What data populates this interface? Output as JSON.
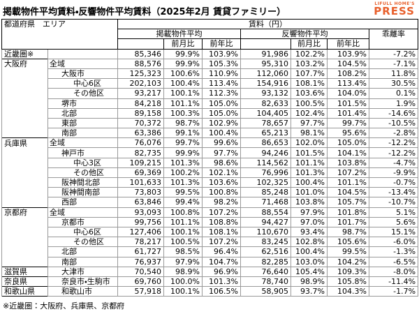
{
  "header": {
    "title": "掲載物件平均賃料・反響物件平均賃料（2025年2月 賃貸ファミリー）",
    "logo_top": "LIFULL HOME'S",
    "logo_main": "PRESS"
  },
  "table": {
    "head": {
      "region": "都道府県　エリア",
      "rent": "賃料（円）",
      "listed": "掲載物件平均",
      "inquiry": "反響物件平均",
      "gap": "乖離率",
      "mom": "前月比",
      "yoy": "前年比"
    },
    "groups": [
      {
        "pref": "近畿圏※",
        "rows": [
          {
            "values": [
              "85,346",
              "99.9%",
              "103.9%",
              "91,986",
              "102.2%",
              "103.9%",
              "-7.2%"
            ]
          }
        ]
      },
      {
        "pref": "大阪府",
        "rows": [
          {
            "area": "全域",
            "values": [
              "88,576",
              "99.9%",
              "105.3%",
              "95,310",
              "103.2%",
              "104.5%",
              "-7.1%"
            ],
            "areas": [
              {
                "area": "大阪市",
                "values": [
                  "125,323",
                  "100.6%",
                  "110.9%",
                  "112,060",
                  "107.7%",
                  "108.2%",
                  "11.8%"
                ],
                "areas": [
                  {
                    "area": "中心6区",
                    "values": [
                      "202,103",
                      "100.4%",
                      "113.4%",
                      "154,916",
                      "108.1%",
                      "113.4%",
                      "30.5%"
                    ]
                  },
                  {
                    "area": "その他区",
                    "values": [
                      "93,217",
                      "100.1%",
                      "112.3%",
                      "93,132",
                      "103.6%",
                      "104.0%",
                      "0.1%"
                    ]
                  }
                ]
              },
              {
                "area": "堺市",
                "values": [
                  "84,218",
                  "101.1%",
                  "105.0%",
                  "82,633",
                  "100.5%",
                  "101.5%",
                  "1.9%"
                ]
              },
              {
                "area": "北部",
                "values": [
                  "89,158",
                  "100.3%",
                  "105.0%",
                  "104,405",
                  "102.4%",
                  "101.4%",
                  "-14.6%"
                ]
              },
              {
                "area": "東部",
                "values": [
                  "70,372",
                  "98.7%",
                  "102.9%",
                  "78,657",
                  "97.7%",
                  "99.7%",
                  "-10.5%"
                ]
              },
              {
                "area": "南部",
                "values": [
                  "63,386",
                  "99.1%",
                  "100.4%",
                  "65,213",
                  "98.1%",
                  "95.6%",
                  "-2.8%"
                ]
              }
            ]
          }
        ]
      },
      {
        "pref": "兵庫県",
        "rows": [
          {
            "area": "全域",
            "values": [
              "76,076",
              "99.7%",
              "99.6%",
              "86,653",
              "102.0%",
              "105.0%",
              "-12.2%"
            ],
            "areas": [
              {
                "area": "神戸市",
                "values": [
                  "82,735",
                  "99.9%",
                  "97.7%",
                  "94,246",
                  "101.5%",
                  "104.1%",
                  "-12.2%"
                ],
                "areas": [
                  {
                    "area": "中心3区",
                    "values": [
                      "109,215",
                      "101.3%",
                      "98.6%",
                      "114,562",
                      "101.1%",
                      "103.8%",
                      "-4.7%"
                    ]
                  },
                  {
                    "area": "その他区",
                    "values": [
                      "69,369",
                      "100.2%",
                      "102.1%",
                      "76,996",
                      "101.3%",
                      "107.2%",
                      "-9.9%"
                    ]
                  }
                ]
              },
              {
                "area": "阪神間北部",
                "values": [
                  "101,633",
                  "101.3%",
                  "103.6%",
                  "102,325",
                  "100.4%",
                  "101.1%",
                  "-0.7%"
                ]
              },
              {
                "area": "阪神間南部",
                "values": [
                  "73,803",
                  "99.5%",
                  "100.8%",
                  "85,248",
                  "101.0%",
                  "104.5%",
                  "-13.4%"
                ]
              },
              {
                "area": "西部",
                "values": [
                  "63,846",
                  "99.4%",
                  "98.2%",
                  "71,468",
                  "103.8%",
                  "105.7%",
                  "-10.7%"
                ]
              }
            ]
          }
        ]
      },
      {
        "pref": "京都府",
        "rows": [
          {
            "area": "全域",
            "values": [
              "93,093",
              "100.8%",
              "107.2%",
              "88,554",
              "97.9%",
              "101.8%",
              "5.1%"
            ],
            "areas": [
              {
                "area": "京都市",
                "values": [
                  "99,756",
                  "101.1%",
                  "108.8%",
                  "94,427",
                  "97.0%",
                  "101.7%",
                  "5.6%"
                ],
                "areas": [
                  {
                    "area": "中心6区",
                    "values": [
                      "127,406",
                      "100.1%",
                      "108.1%",
                      "110,670",
                      "93.4%",
                      "98.7%",
                      "15.1%"
                    ]
                  },
                  {
                    "area": "その他区",
                    "values": [
                      "78,217",
                      "100.5%",
                      "107.2%",
                      "83,245",
                      "102.8%",
                      "105.6%",
                      "-6.0%"
                    ]
                  }
                ]
              },
              {
                "area": "北部",
                "values": [
                  "61,727",
                  "98.5%",
                  "96.4%",
                  "62,516",
                  "100.4%",
                  "99.5%",
                  "-1.3%"
                ]
              },
              {
                "area": "南部",
                "values": [
                  "76,937",
                  "97.9%",
                  "104.7%",
                  "82,285",
                  "103.0%",
                  "104.2%",
                  "-6.5%"
                ]
              }
            ]
          }
        ]
      },
      {
        "pref": "滋賀県",
        "rows": [
          {
            "area": "大津市",
            "values": [
              "70,540",
              "98.9%",
              "96.9%",
              "76,640",
              "105.4%",
              "109.3%",
              "-8.0%"
            ]
          }
        ]
      },
      {
        "pref": "奈良県",
        "rows": [
          {
            "area": "奈良市・生駒市",
            "values": [
              "69,760",
              "100.0%",
              "101.3%",
              "78,740",
              "98.9%",
              "105.8%",
              "-11.4%"
            ]
          }
        ]
      },
      {
        "pref": "和歌山県",
        "rows": [
          {
            "area": "和歌山市",
            "values": [
              "57,918",
              "100.1%",
              "106.5%",
              "58,905",
              "93.7%",
              "104.3%",
              "-1.7%"
            ]
          }
        ]
      }
    ]
  },
  "footnote": "※近畿圏：大阪府、兵庫県、京都府"
}
